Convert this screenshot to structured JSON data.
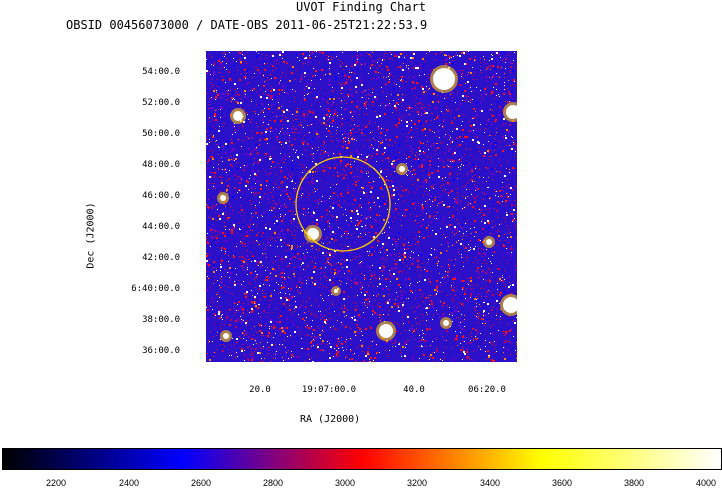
{
  "chart_data": {
    "type": "heatmap",
    "title": "UVOT Finding Chart",
    "subtitle": "OBSID 00456073000 / DATE-OBS 2011-06-25T21:22:53.9",
    "xlabel": "RA (J2000)",
    "ylabel": "Dec (J2000)",
    "x_ticks": [
      "20.0",
      "19:07:00.0",
      "40.0",
      "06:20.0"
    ],
    "y_ticks": [
      "54:00.0",
      "52:00.0",
      "50:00.0",
      "48:00.0",
      "46:00.0",
      "44:00.0",
      "42:00.0",
      "6:40:00.0",
      "38:00.0",
      "36:00.0"
    ],
    "colorbar": {
      "ticks": [
        "2200",
        "2400",
        "2600",
        "2800",
        "3000",
        "3200",
        "3400",
        "3600",
        "3800",
        "4000"
      ],
      "colors": [
        "#000000",
        "#0000ff",
        "#ff0000",
        "#ffff00",
        "#ffffff"
      ]
    },
    "circle_color": "#ffcc00"
  }
}
